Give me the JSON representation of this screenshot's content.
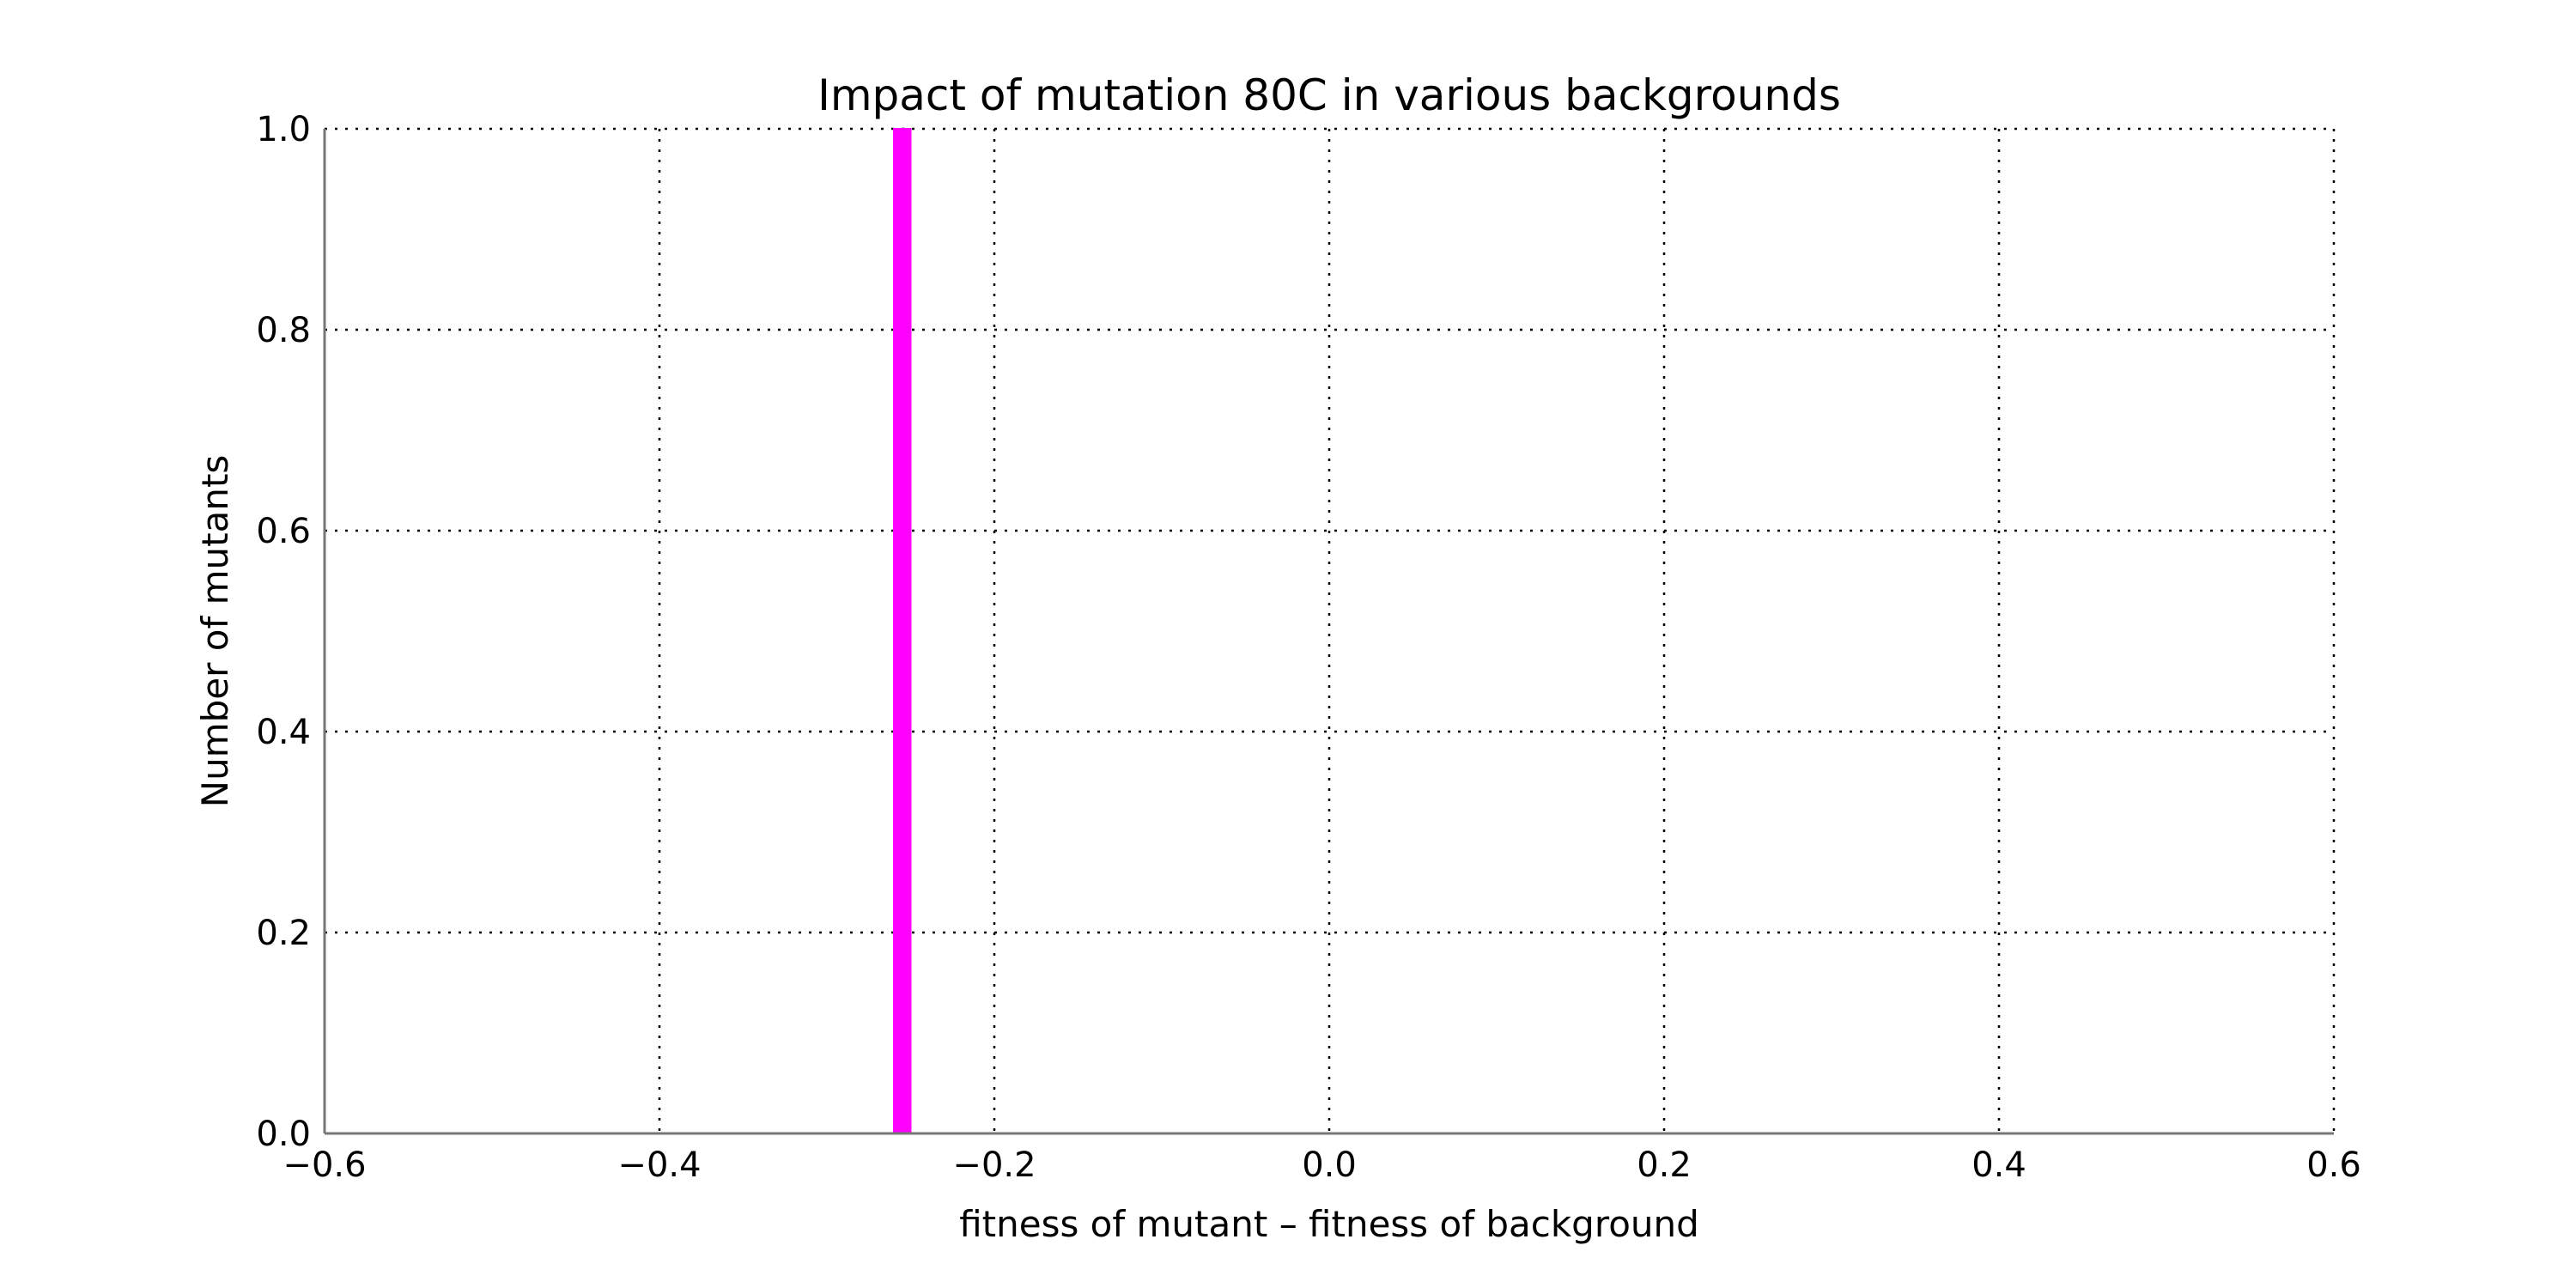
{
  "chart_data": {
    "type": "bar",
    "title": "Impact of mutation 80C in various backgrounds",
    "xlabel": "fitness of mutant  –  fitness of background",
    "ylabel": "Number of mutants",
    "xlim": [
      -0.6,
      0.6
    ],
    "ylim": [
      0.0,
      1.0
    ],
    "x_ticks": [
      -0.6,
      -0.4,
      -0.2,
      0.0,
      0.2,
      0.4,
      0.6
    ],
    "x_tick_labels": [
      "−0.6",
      "−0.4",
      "−0.2",
      "0.0",
      "0.2",
      "0.4",
      "0.6"
    ],
    "y_ticks": [
      0.0,
      0.2,
      0.4,
      0.6,
      0.8,
      1.0
    ],
    "y_tick_labels": [
      "0.0",
      "0.2",
      "0.4",
      "0.6",
      "0.8",
      "1.0"
    ],
    "grid": true,
    "bars": [
      {
        "x_start": -0.26,
        "x_end": -0.25,
        "value": 1
      }
    ],
    "bar_color": "#ff00ff"
  }
}
